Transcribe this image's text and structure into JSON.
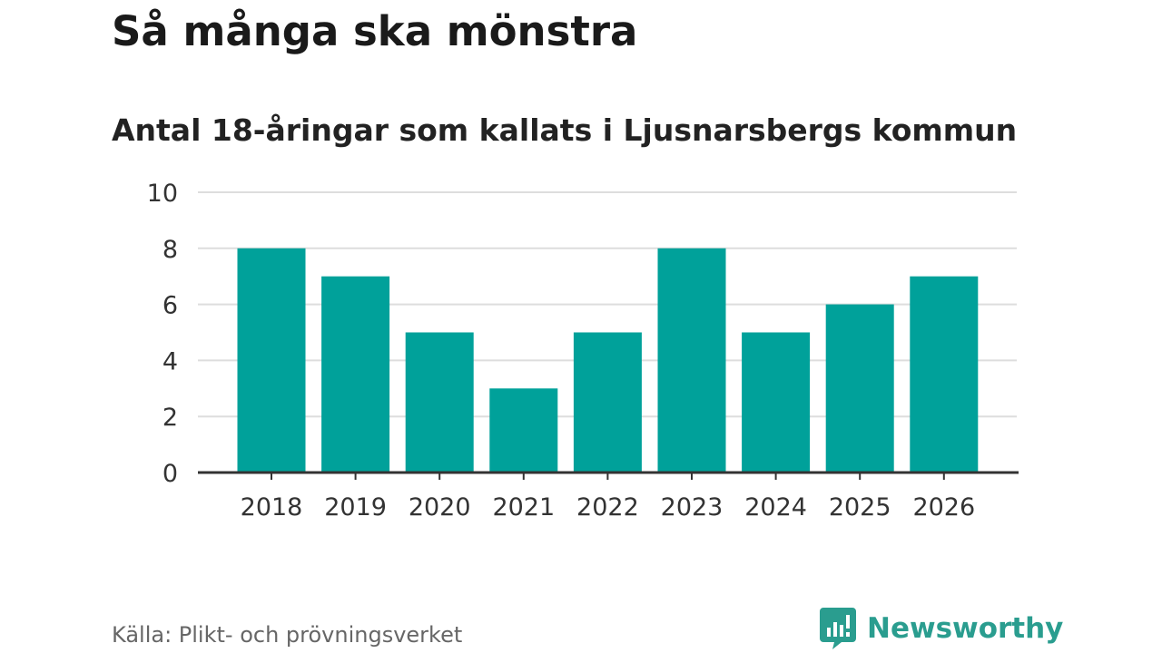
{
  "title": "Så många ska mönstra",
  "subtitle": "Antal 18-åringar som kallats i Ljusnarsbergs kommun",
  "source": "Källa: Plikt- och prövningsverket",
  "brand": {
    "name": "Newsworthy",
    "icon": "newsworthy-logo-icon",
    "color": "#2a9d8f"
  },
  "colors": {
    "bar": "#00a19a",
    "grid": "#dddddd",
    "axis": "#333333",
    "text": "#333333"
  },
  "chart_data": {
    "type": "bar",
    "categories": [
      "2018",
      "2019",
      "2020",
      "2021",
      "2022",
      "2023",
      "2024",
      "2025",
      "2026"
    ],
    "values": [
      8,
      7,
      5,
      3,
      5,
      8,
      5,
      6,
      7
    ],
    "ylim": [
      0,
      10
    ],
    "yticks": [
      0,
      2,
      4,
      6,
      8,
      10
    ],
    "grid": true,
    "legend": "none"
  }
}
